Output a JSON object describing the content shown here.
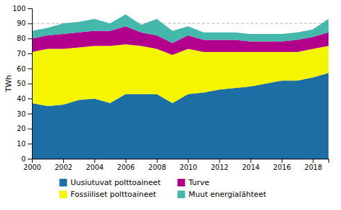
{
  "chart_data": {
    "type": "area",
    "stacked": true,
    "y_label": "TWh",
    "x": [
      2000,
      2001,
      2002,
      2003,
      2004,
      2005,
      2006,
      2007,
      2008,
      2009,
      2010,
      2011,
      2012,
      2013,
      2014,
      2015,
      2016,
      2017,
      2018,
      2019
    ],
    "series": [
      {
        "name": "Uusiutuvat polttoaineet",
        "color": "#1c6ea4",
        "values": [
          37,
          35,
          36,
          39,
          40,
          37,
          43,
          43,
          43,
          37,
          43,
          44,
          46,
          47,
          48,
          50,
          52,
          52,
          54,
          57
        ]
      },
      {
        "name": "Fossiiliset polttoaineet",
        "color": "#f5f500",
        "values": [
          34,
          38,
          37,
          35,
          35,
          38,
          33,
          32,
          30,
          32,
          30,
          27,
          25,
          24,
          23,
          21,
          19,
          19,
          19,
          18
        ]
      },
      {
        "name": "Turve",
        "color": "#b3008c",
        "values": [
          9,
          9,
          10,
          10,
          10,
          10,
          12,
          9,
          9,
          8,
          9,
          8,
          8,
          8,
          7,
          7,
          7,
          8,
          8,
          9
        ]
      },
      {
        "name": "Muut energialähteet",
        "color": "#45b8ac",
        "values": [
          5,
          5,
          7,
          7,
          8,
          5,
          8,
          5,
          11,
          8,
          6,
          5,
          5,
          5,
          5,
          5,
          5,
          5,
          5,
          9
        ]
      }
    ],
    "xlim": [
      2000,
      2019
    ],
    "xticks": [
      2000,
      2002,
      2004,
      2006,
      2008,
      2010,
      2012,
      2014,
      2016,
      2018
    ],
    "ylim": [
      0,
      100
    ],
    "yticks": [
      0,
      10,
      20,
      30,
      40,
      50,
      60,
      70,
      80,
      90,
      100
    ],
    "hlines": [
      90
    ],
    "legend": "bottom"
  }
}
